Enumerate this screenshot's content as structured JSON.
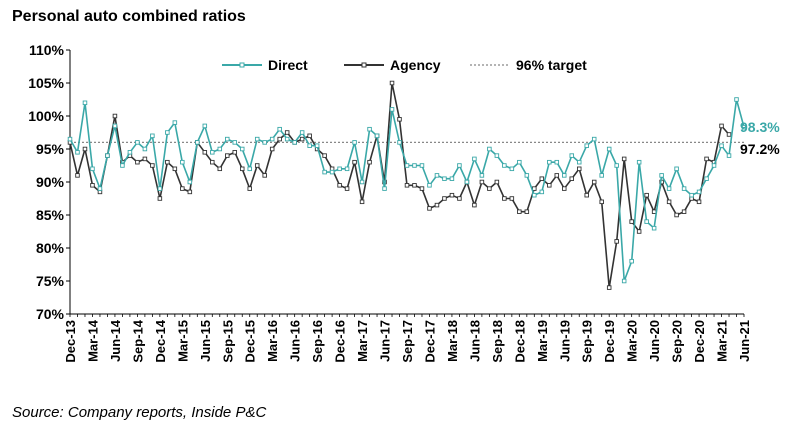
{
  "chart_data": {
    "type": "line",
    "title": "Personal auto combined ratios",
    "source": "Source: Company reports, Inside P&C",
    "ylim": [
      70,
      110
    ],
    "yticks": [
      70,
      75,
      80,
      85,
      90,
      95,
      100,
      105,
      110
    ],
    "ytick_labels": [
      "70%",
      "75%",
      "80%",
      "85%",
      "90%",
      "95%",
      "100%",
      "105%",
      "110%"
    ],
    "x_tick_labels": [
      "Dec-13",
      "Mar-14",
      "Jun-14",
      "Sep-14",
      "Dec-14",
      "Mar-15",
      "Jun-15",
      "Sep-15",
      "Dec-15",
      "Mar-16",
      "Jun-16",
      "Sep-16",
      "Dec-16",
      "Mar-17",
      "Jun-17",
      "Sep-17",
      "Dec-17",
      "Mar-18",
      "Jun-18",
      "Sep-18",
      "Dec-18",
      "Mar-19",
      "Jun-19",
      "Sep-19",
      "Dec-19",
      "Mar-20",
      "Jun-20",
      "Sep-20",
      "Dec-20",
      "Mar-21",
      "Jun-21"
    ],
    "colors": {
      "direct": "#3aa8a8",
      "agency": "#333333",
      "target": "#888888"
    },
    "target": {
      "name": "96% target",
      "value": 96
    },
    "series": [
      {
        "name": "Direct",
        "end_label": "98.3%",
        "values": [
          96.5,
          94.5,
          102,
          92,
          89,
          94,
          98.5,
          92.5,
          94.5,
          96,
          95,
          97,
          89,
          97.5,
          99,
          93,
          90,
          96,
          98.5,
          94.5,
          95,
          96.5,
          96,
          95,
          92,
          96.5,
          96,
          96.5,
          98,
          96.5,
          96,
          97.5,
          95.5,
          95.5,
          91.5,
          91.5,
          92,
          92,
          96,
          90,
          98,
          97,
          89,
          101,
          96,
          92.5,
          92.5,
          92.5,
          89.5,
          91,
          90.5,
          90.5,
          92.5,
          90,
          93.5,
          91,
          95,
          94,
          92.5,
          92,
          93,
          91,
          88,
          88.5,
          93,
          93,
          91,
          94,
          93,
          95.5,
          96.5,
          91,
          95,
          92.5,
          75,
          78,
          93,
          84,
          83,
          91,
          89,
          92,
          89,
          88,
          88.5,
          90.5,
          92.5,
          95.5,
          94,
          102.5,
          98.3
        ]
      },
      {
        "name": "Agency",
        "end_label": "97.2%",
        "values": [
          96,
          91,
          95,
          89.5,
          88.5,
          94,
          100,
          93,
          94,
          93,
          93.5,
          92.5,
          87.5,
          93,
          92,
          89,
          88.5,
          96,
          94.5,
          93,
          92,
          94,
          94.5,
          92,
          89,
          92.5,
          91,
          95,
          96.5,
          97.5,
          96,
          96.5,
          97,
          95,
          94,
          92,
          89.5,
          89,
          93,
          87,
          93,
          97,
          90,
          105,
          99.5,
          89.5,
          89.5,
          89,
          86,
          86.5,
          87.5,
          88,
          87.5,
          90,
          86.5,
          90,
          89,
          90,
          87.5,
          87.5,
          85.5,
          85.5,
          89,
          90.5,
          89.5,
          91,
          89,
          90.5,
          92,
          88,
          90,
          87,
          74,
          81,
          93.5,
          84,
          82.5,
          88,
          85.5,
          90,
          87,
          85,
          85.5,
          87.5,
          87,
          93.5,
          93,
          98.5,
          97.2
        ]
      }
    ]
  }
}
